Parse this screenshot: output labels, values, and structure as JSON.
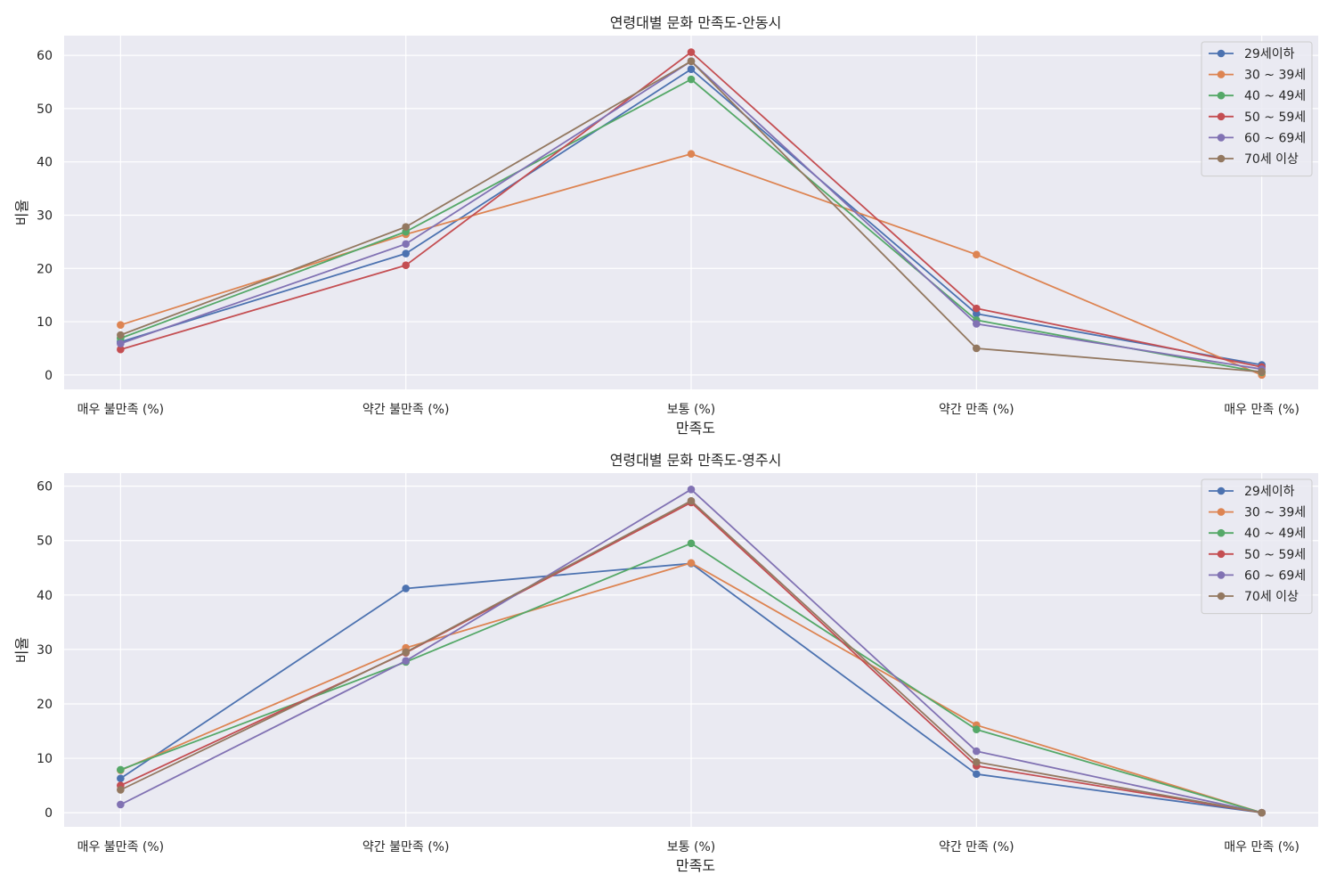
{
  "chart_data": [
    {
      "type": "line",
      "title": "연령대별 문화 만족도-안동시",
      "xlabel": "만족도",
      "ylabel": "비율",
      "categories": [
        "매우 불만족 (%)",
        "약간 불만족 (%)",
        "보통 (%)",
        "약간 만족 (%)",
        "매우 만족 (%)"
      ],
      "ylim": [
        -2.7,
        63.7
      ],
      "yticks": [
        0,
        10,
        20,
        30,
        40,
        50,
        60
      ],
      "grid": true,
      "legend": "top-right",
      "series": [
        {
          "name": "29세이하",
          "color": "#4c72b0",
          "values": [
            6.2,
            22.8,
            57.4,
            11.5,
            1.9
          ]
        },
        {
          "name": "30 ~ 39세",
          "color": "#dd8452",
          "values": [
            9.4,
            26.4,
            41.5,
            22.6,
            0.0
          ]
        },
        {
          "name": "40 ~ 49세",
          "color": "#55a868",
          "values": [
            6.9,
            26.9,
            55.5,
            10.3,
            0.5
          ]
        },
        {
          "name": "50 ~ 59세",
          "color": "#c44e52",
          "values": [
            4.8,
            20.6,
            60.6,
            12.5,
            1.5
          ]
        },
        {
          "name": "60 ~ 69세",
          "color": "#8172b3",
          "values": [
            5.9,
            24.6,
            58.9,
            9.6,
            1.1
          ]
        },
        {
          "name": "70세 이상",
          "color": "#937860",
          "values": [
            7.5,
            27.8,
            58.9,
            5.0,
            0.6
          ]
        }
      ]
    },
    {
      "type": "line",
      "title": "연령대별 문화 만족도-영주시",
      "xlabel": "만족도",
      "ylabel": "비율",
      "categories": [
        "매우 불만족 (%)",
        "약간 불만족 (%)",
        "보통 (%)",
        "약간 만족 (%)",
        "매우 만족 (%)"
      ],
      "ylim": [
        -2.6,
        62.4
      ],
      "yticks": [
        0,
        10,
        20,
        30,
        40,
        50,
        60
      ],
      "grid": true,
      "legend": "top-right",
      "series": [
        {
          "name": "29세이하",
          "color": "#4c72b0",
          "values": [
            6.3,
            41.2,
            45.8,
            7.1,
            0.0
          ]
        },
        {
          "name": "30 ~ 39세",
          "color": "#dd8452",
          "values": [
            7.8,
            30.3,
            45.9,
            16.1,
            0.0
          ]
        },
        {
          "name": "40 ~ 49세",
          "color": "#55a868",
          "values": [
            7.9,
            27.7,
            49.5,
            15.3,
            0.0
          ]
        },
        {
          "name": "50 ~ 59세",
          "color": "#c44e52",
          "values": [
            5.0,
            29.4,
            57.0,
            8.6,
            0.0
          ]
        },
        {
          "name": "60 ~ 69세",
          "color": "#8172b3",
          "values": [
            1.5,
            27.9,
            59.4,
            11.3,
            0.0
          ]
        },
        {
          "name": "70세 이상",
          "color": "#937860",
          "values": [
            4.2,
            29.5,
            57.3,
            9.3,
            0.0
          ]
        }
      ]
    }
  ]
}
